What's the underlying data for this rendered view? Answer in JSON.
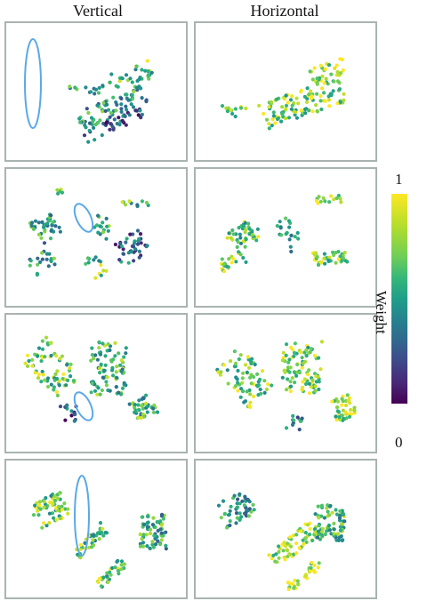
{
  "chart_data": {
    "type": "scatter",
    "columns": [
      "Vertical",
      "Horizontal"
    ],
    "colorbar": {
      "label": "Weight",
      "min": 0,
      "max": 1,
      "min_label": "0",
      "max_label": "1",
      "colormap": "viridis"
    },
    "rows": 4,
    "highlight_color": "#5aa9e6",
    "panel_border_color": "#a9b3b2"
  }
}
